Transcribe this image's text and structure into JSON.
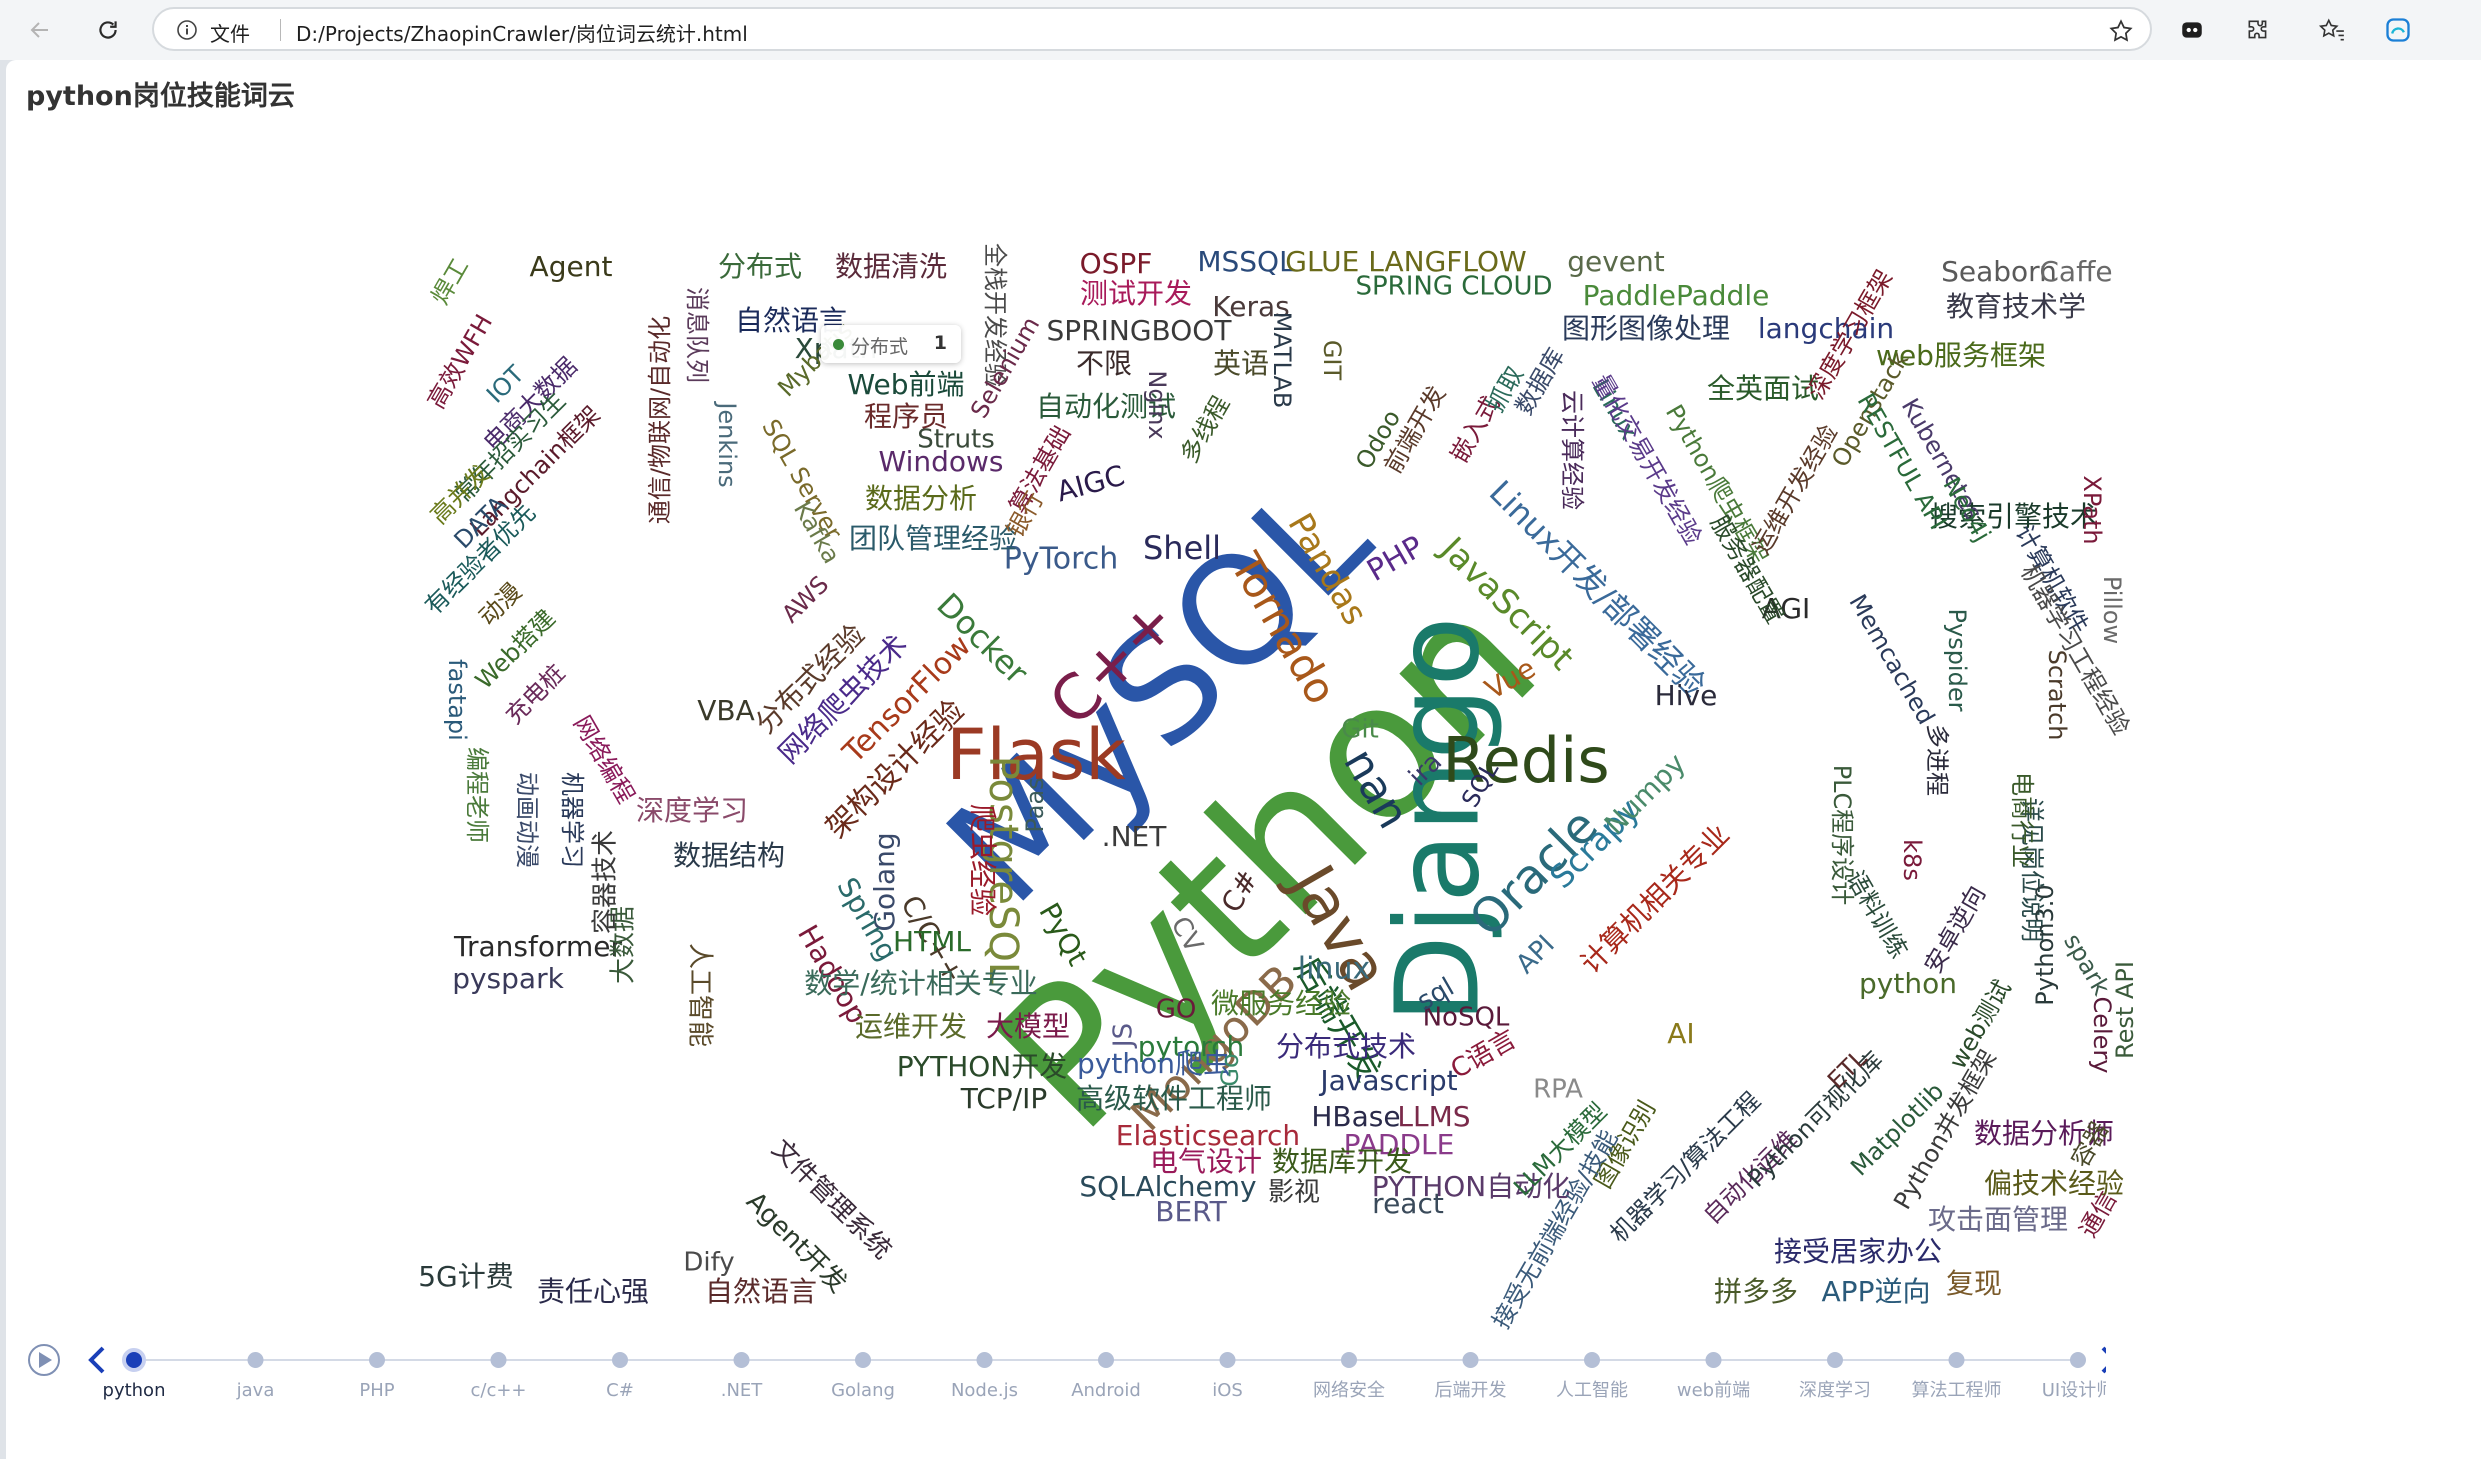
{
  "browser": {
    "security_label": "文件",
    "url": "D:/Projects/ZhaopinCrawler/岗位词云统计.html"
  },
  "page": {
    "title": "python岗位技能词云"
  },
  "tooltip": {
    "label": "分布式",
    "value": "1"
  },
  "timeline": {
    "items": [
      "python",
      "java",
      "PHP",
      "c/c++",
      "C#",
      ".NET",
      "Golang",
      "Node.js",
      "Android",
      "iOS",
      "网络安全",
      "后端开发",
      "人工智能",
      "web前端",
      "深度学习",
      "算法工程师",
      "UI设计师"
    ],
    "active_index": 0
  },
  "colors": {
    "accent": "#1a3fb8",
    "timeline_item": "#7f90b4",
    "timeline_label": "#9aa4b8"
  },
  "wordcloud": [
    {
      "t": "Python",
      "c": "#4a9a3c"
    },
    {
      "t": "MySQL",
      "c": "#2a56a8"
    },
    {
      "t": "Django",
      "c": "#1a7a6a"
    },
    {
      "t": "Flask",
      "c": "#9b3a24"
    },
    {
      "t": "Redis",
      "c": "#2f4a1a"
    },
    {
      "t": "Java",
      "c": "#6a4a2a"
    },
    {
      "t": "C++",
      "c": "#7a1e4a"
    },
    {
      "t": "Oracle",
      "c": "#2a6a7a"
    },
    {
      "t": "PostgreSQL",
      "c": "#7a8a3a"
    },
    {
      "t": "MongoDB",
      "c": "#8a6a4a"
    },
    {
      "t": "Tornado",
      "c": "#a8581a"
    },
    {
      "t": "nan",
      "c": "#1a3a5a"
    },
    {
      "t": "Linux开发/部署经验",
      "c": "#3a6a9a"
    },
    {
      "t": "JavaScript",
      "c": "#5a8a2a"
    },
    {
      "t": "后端开发",
      "c": "#1a5a2a"
    },
    {
      "t": "Scrapy",
      "c": "#2a7a9a"
    },
    {
      "t": "Numpy",
      "c": "#4a8a6a"
    },
    {
      "t": "计算机相关专业",
      "c": "#a8281a"
    },
    {
      "t": "爬虫经验",
      "c": "#9a1a2a"
    },
    {
      "t": "架构设计经验",
      "c": "#6a2a1a"
    },
    {
      "t": "TensorFlow",
      "c": "#a83a1a"
    },
    {
      "t": "网络爬虫技术",
      "c": "#4a2a8a"
    },
    {
      "t": "分布式经验",
      "c": "#5a3a2a"
    },
    {
      "t": "Pandas",
      "c": "#a8781a"
    },
    {
      "t": "Shell",
      "c": "#2a2a5a"
    },
    {
      "t": "PyTorch",
      "c": "#3a5a8a"
    },
    {
      "t": "Docker",
      "c": "#3a7a3a"
    },
    {
      "t": "Golang",
      "c": "#3a4a6a"
    },
    {
      "t": "Hadoop",
      "c": "#7a1a3a"
    },
    {
      "t": "Spring",
      "c": "#2a6a6a"
    },
    {
      "t": "C/C++",
      "c": "#4a3a2a"
    },
    {
      "t": "PyQt",
      "c": "#2a5a1a"
    },
    {
      "t": "linux",
      "c": "#3a6a7a"
    },
    {
      "t": "微服务经验",
      "c": "#4a7a2a"
    },
    {
      "t": "pytorch",
      "c": "#2a7a3a"
    },
    {
      "t": "分布式技术",
      "c": "#3a2a7a"
    },
    {
      "t": "Javascript",
      "c": "#2a3a6a"
    },
    {
      "t": "HBase",
      "c": "#2a2a4a"
    },
    {
      "t": "LLMS",
      "c": "#7a2a4a"
    },
    {
      "t": "PADDLE",
      "c": "#8a3a8a"
    },
    {
      "t": "数据库开发",
      "c": "#3a5a1a"
    },
    {
      "t": "PYTHON自动化",
      "c": "#5a3a6a"
    },
    {
      "t": "react",
      "c": "#3a4a5a"
    },
    {
      "t": "SQLAlchemy",
      "c": "#2a4a5a"
    },
    {
      "t": "BERT",
      "c": "#5a5a8a"
    },
    {
      "t": "影视",
      "c": "#3a3a3a"
    },
    {
      "t": "电气设计",
      "c": "#9a1a5a"
    },
    {
      "t": "Elasticsearch",
      "c": "#a82a3a"
    },
    {
      "t": "高级软件工程师",
      "c": "#2a5a4a"
    },
    {
      "t": "TCP/IP",
      "c": "#2a3a2a"
    },
    {
      "t": "PYTHON开发",
      "c": "#2a4a2a"
    },
    {
      "t": "python爬虫",
      "c": "#3a5a9a"
    },
    {
      "t": "运维开发",
      "c": "#5a6a2a"
    },
    {
      "t": "大模型",
      "c": "#7a1a4a"
    },
    {
      "t": "数学/统计相关专业",
      "c": "#3a6a5a"
    },
    {
      "t": "HTML",
      "c": "#2a6a2a"
    },
    {
      "t": "数据结构",
      "c": "#2a3a4a"
    },
    {
      "t": "深度学习",
      "c": "#8a4a6a"
    },
    {
      "t": "Transformer",
      "c": "#2a2a2a"
    },
    {
      "t": "pyspark",
      "c": "#3a3a5a"
    },
    {
      "t": "VBA",
      "c": "#3a3a2a"
    },
    {
      "t": "Windows",
      "c": "#5a2a6a"
    },
    {
      "t": "数据分析",
      "c": "#5a6a1a"
    },
    {
      "t": "团队管理经验",
      "c": "#2a5a6a"
    },
    {
      "t": "AIGC",
      "c": "#2a1a4a"
    },
    {
      "t": "Struts",
      "c": "#3a4a3a"
    },
    {
      "t": "自动化测试",
      "c": "#2a5a3a"
    },
    {
      "t": "程序员",
      "c": "#6a2a2a"
    },
    {
      "t": "Web前端",
      "c": "#1a4a3a"
    },
    {
      "t": "Xpath",
      "c": "#2a4a3a"
    },
    {
      "t": "自然语言",
      "c": "#1a2a5a"
    },
    {
      "t": "分布式",
      "c": "#3a6a3a"
    },
    {
      "t": "数据清洗",
      "c": "#5a2a3a"
    },
    {
      "t": "Agent",
      "c": "#3a3a1a"
    },
    {
      "t": "OSPF",
      "c": "#7a1a2a"
    },
    {
      "t": "测试开发",
      "c": "#a81a5a"
    },
    {
      "t": "MSSQL",
      "c": "#2a4a7a"
    },
    {
      "t": "GLUE LANGFLOW",
      "c": "#6a6a1a"
    },
    {
      "t": "SPRING CLOUD",
      "c": "#2a6a3a"
    },
    {
      "t": "gevent",
      "c": "#5a6a4a"
    },
    {
      "t": "PaddlePaddle",
      "c": "#4a8a3a"
    },
    {
      "t": "Seaborn",
      "c": "#5a5a5a"
    },
    {
      "t": "Caffe",
      "c": "#6a6a6a"
    },
    {
      "t": "教育技术学",
      "c": "#3a3a4a"
    },
    {
      "t": "Keras",
      "c": "#4a3a3a"
    },
    {
      "t": "SPRINGBOOT",
      "c": "#3a3a3a"
    },
    {
      "t": "不限",
      "c": "#3a2a2a"
    },
    {
      "t": "英语",
      "c": "#4a4a2a"
    },
    {
      "t": "图形图像处理",
      "c": "#2a3a5a"
    },
    {
      "t": "langchain",
      "c": "#2a3a7a"
    },
    {
      "t": "web服务框架",
      "c": "#4a6a1a"
    },
    {
      "t": "全英面试",
      "c": "#2a5a2a"
    },
    {
      "t": "搜索引擎技术",
      "c": "#1a3a2a"
    },
    {
      "t": "Hive",
      "c": "#2a2a3a"
    },
    {
      "t": "AGI",
      "c": "#2a2a2a"
    },
    {
      "t": "数据分析师",
      "c": "#5a1a5a"
    },
    {
      "t": "偏技术经验",
      "c": "#5a5a1a"
    },
    {
      "t": "攻击面管理",
      "c": "#6a6a8a"
    },
    {
      "t": "接受居家办公",
      "c": "#2a2a6a"
    },
    {
      "t": "APP逆向",
      "c": "#2a5a7a"
    },
    {
      "t": "拼多多",
      "c": "#4a5a2a"
    },
    {
      "t": "复现",
      "c": "#7a5a2a"
    },
    {
      "t": "python",
      "c": "#4a6a2a"
    },
    {
      "t": "5G计费",
      "c": "#2a3a3a"
    },
    {
      "t": "责任心强",
      "c": "#2a2a4a"
    },
    {
      "t": "自然语言",
      "c": "#5a2a2a"
    },
    {
      "t": "Dify",
      "c": "#4a4a4a"
    },
    {
      "t": "Agent开发",
      "c": "#2a3a2a"
    },
    {
      "t": "文件管理系统",
      "c": "#3a2a3a"
    },
    {
      "t": "人工智能",
      "c": "#5a4a2a"
    },
    {
      "t": "大数据",
      "c": "#3a5a3a"
    },
    {
      "t": "容器技术",
      "c": "#3a3a3a"
    },
    {
      "t": ".NET",
      "c": "#3a3a3a"
    },
    {
      "t": "C#",
      "c": "#4a2a2a"
    },
    {
      "t": "Vue",
      "c": "#a8581a"
    },
    {
      "t": "PHP",
      "c": "#5a2a8a"
    },
    {
      "t": "Go",
      "c": "#3a8a6a"
    },
    {
      "t": "NoSQL",
      "c": "#5a1a3a"
    },
    {
      "t": "C语言",
      "c": "#8a1a3a"
    },
    {
      "t": "RPA",
      "c": "#8a8a8a"
    },
    {
      "t": "AI",
      "c": "#8a7a1a"
    },
    {
      "t": "ira",
      "c": "#3a3a6a"
    },
    {
      "t": "Git",
      "c": "#4a8a4a"
    },
    {
      "t": "SQL",
      "c": "#2a2a5a"
    },
    {
      "t": "API",
      "c": "#3a6a8a"
    },
    {
      "t": "sql",
      "c": "#2a4a6a"
    },
    {
      "t": "CV",
      "c": "#6a6a6a"
    },
    {
      "t": "GO",
      "c": "#6a1a3a"
    },
    {
      "t": "JS",
      "c": "#5a5a8a"
    },
    {
      "t": "Paas",
      "c": "#3a5a5a"
    }
  ]
}
